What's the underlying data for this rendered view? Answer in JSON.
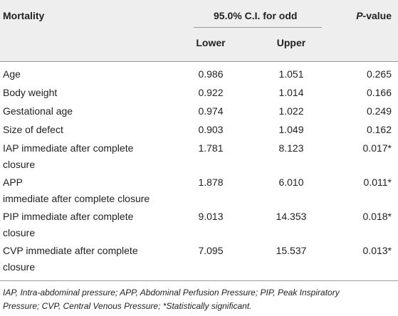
{
  "table": {
    "headers": {
      "col1": "Mortality",
      "ci_group": "95.0% C.I. for odd",
      "lower": "Lower",
      "upper": "Upper",
      "pvalue_italic": "P",
      "pvalue_rest": "-value"
    },
    "rows": [
      {
        "label": [
          "Age"
        ],
        "lower": "0.986",
        "upper": "1.051",
        "p": "0.265"
      },
      {
        "label": [
          "Body weight"
        ],
        "lower": "0.922",
        "upper": "1.014",
        "p": "0.166"
      },
      {
        "label": [
          "Gestational age"
        ],
        "lower": "0.974",
        "upper": "1.022",
        "p": "0.249"
      },
      {
        "label": [
          "Size of defect"
        ],
        "lower": "0.903",
        "upper": "1.049",
        "p": "0.162"
      },
      {
        "label": [
          "IAP immediate after complete",
          "closure"
        ],
        "lower": "1.781",
        "upper": "8.123",
        "p": "0.017*"
      },
      {
        "label": [
          "APP",
          "immediate after complete closure"
        ],
        "lower": "1.878",
        "upper": "6.010",
        "p": "0.011*"
      },
      {
        "label": [
          "PIP immediate after complete",
          "closure"
        ],
        "lower": "9.013",
        "upper": "14.353",
        "p": "0.018*"
      },
      {
        "label": [
          "CVP immediate after complete",
          "closure"
        ],
        "lower": "7.095",
        "upper": "15.537",
        "p": "0.013*"
      }
    ]
  },
  "footnote": {
    "line1": "IAP, Intra-abdominal pressure; APP, Abdominal Perfusion Pressure; PIP, Peak Inspiratory",
    "line2": "Pressure; CVP, Central Venous Pressure; *Statistically significant."
  }
}
